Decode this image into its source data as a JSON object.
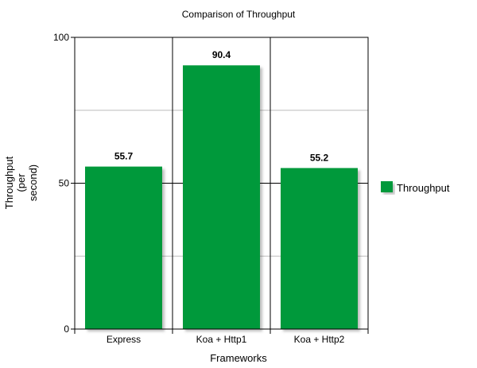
{
  "chart_data": {
    "type": "bar",
    "title": "Comparison of Throughput",
    "xlabel": "Frameworks",
    "ylabel_lines": [
      "Throughput",
      "(per",
      "second)"
    ],
    "categories": [
      "Express",
      "Koa + Http1",
      "Koa + Http2"
    ],
    "series": [
      {
        "name": "Throughput",
        "values": [
          55.7,
          90.4,
          55.2
        ],
        "color": "#00993a"
      }
    ],
    "ylim": [
      0,
      100
    ],
    "yticks": [
      "0",
      "50",
      "100"
    ],
    "data_labels": [
      "55.7",
      "90.4",
      "55.2"
    ],
    "grid": true,
    "legend_position": "right"
  }
}
